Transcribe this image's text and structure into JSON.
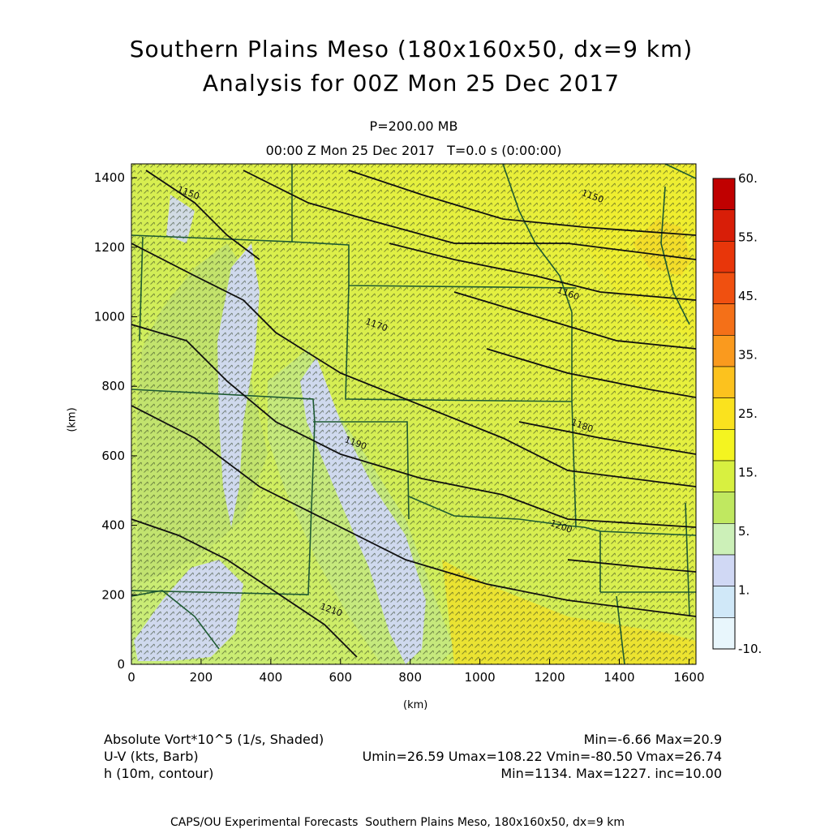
{
  "title": {
    "line1": "Southern Plains Meso (180x160x50, dx=9 km)",
    "line2": "Analysis for 00Z Mon 25 Dec 2017"
  },
  "subtitle": {
    "level": "P=200.00 MB",
    "time": "00:00 Z Mon 25 Dec 2017   T=0.0 s (0:00:00)"
  },
  "axes": {
    "x_unit": "(km)",
    "y_unit": "(km)",
    "x_ticks": [
      "0",
      "200",
      "400",
      "600",
      "800",
      "1000",
      "1200",
      "1400",
      "1600"
    ],
    "y_ticks": [
      "0",
      "200",
      "400",
      "600",
      "800",
      "1000",
      "1200",
      "1400"
    ],
    "x_range_km": [
      0,
      1620
    ],
    "y_range_km": [
      0,
      1440
    ]
  },
  "colorbar": {
    "labels": [
      "60.",
      "55.",
      "45.",
      "35.",
      "25.",
      "15.",
      "5.",
      "1.",
      "-10."
    ],
    "colors": [
      "#c00000",
      "#d81e08",
      "#e8360a",
      "#f05010",
      "#f47018",
      "#fa9a1e",
      "#fcc21e",
      "#fae21e",
      "#f4f420",
      "#d8f040",
      "#c0e860",
      "#ccf0b8",
      "#d0d8f4",
      "#d0e8f8",
      "#e8f6fc"
    ]
  },
  "contours": {
    "labels": [
      {
        "text": "1150",
        "x_km": 130,
        "y_km": 1360
      },
      {
        "text": "1150",
        "x_km": 1290,
        "y_km": 1350
      },
      {
        "text": "1160",
        "x_km": 1220,
        "y_km": 1070
      },
      {
        "text": "1170",
        "x_km": 670,
        "y_km": 980
      },
      {
        "text": "1180",
        "x_km": 1260,
        "y_km": 690
      },
      {
        "text": "1190",
        "x_km": 610,
        "y_km": 640
      },
      {
        "text": "1200",
        "x_km": 1200,
        "y_km": 400
      },
      {
        "text": "1210",
        "x_km": 540,
        "y_km": 160
      }
    ]
  },
  "legend": {
    "row1_left": "Absolute Vort*10^5 (1/s, Shaded)",
    "row1_right": "Min=-6.66 Max=20.9",
    "row2_left": "U-V (kts, Barb)",
    "row2_right": "Umin=26.59 Umax=108.22 Vmin=-80.50 Vmax=26.74",
    "row3_left": "h (10m, contour)",
    "row3_right": "Min=1134. Max=1227. inc=10.00"
  },
  "credit": "CAPS/OU Experimental Forecasts  Southern Plains Meso, 180x160x50, dx=9 km"
}
